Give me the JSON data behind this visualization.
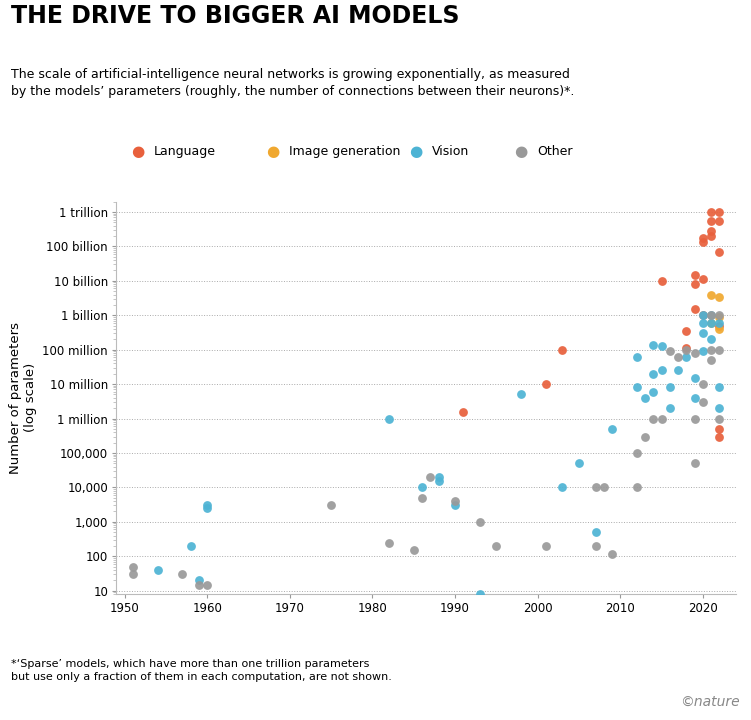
{
  "title": "THE DRIVE TO BIGGER AI MODELS",
  "subtitle": "The scale of artificial-intelligence neural networks is growing exponentially, as measured\nby the models’ parameters (roughly, the number of connections between their neurons)*.",
  "ylabel": "Number of parameters\n(log scale)",
  "footnote": "*‘Sparse’ models, which have more than one trillion parameters\nbut use only a fraction of them in each computation, are not shown.",
  "nature_credit": "©nature",
  "categories": {
    "Language": "#e8603c",
    "Image generation": "#f0a830",
    "Vision": "#4db3d4",
    "Other": "#999999"
  },
  "ytick_labels": [
    "10",
    "100",
    "1,000",
    "10,000",
    "100,000",
    "1 million",
    "10 million",
    "100 million",
    "1 billion",
    "10 billion",
    "100 billion",
    "1 trillion"
  ],
  "ytick_values": [
    10,
    100,
    1000,
    10000,
    100000,
    1000000,
    10000000,
    100000000,
    1000000000,
    10000000000,
    100000000000,
    1000000000000
  ],
  "xlim": [
    1949,
    2024
  ],
  "ylim": [
    8,
    2000000000000
  ],
  "data": {
    "Language": [
      [
        1991,
        1500000
      ],
      [
        2001,
        10000000
      ],
      [
        2003,
        100000000
      ],
      [
        2018,
        110000000
      ],
      [
        2018,
        340000000
      ],
      [
        2019,
        1500000000
      ],
      [
        2019,
        8000000000
      ],
      [
        2019,
        15000000000
      ],
      [
        2020,
        175000000000
      ],
      [
        2020,
        1000000000
      ],
      [
        2020,
        11000000000
      ],
      [
        2020,
        137000000000
      ],
      [
        2021,
        530000000000
      ],
      [
        2021,
        1000000000000
      ],
      [
        2021,
        200000000000
      ],
      [
        2021,
        280000000000
      ],
      [
        2022,
        540000000000
      ],
      [
        2022,
        1000000000000
      ],
      [
        2022,
        70000000000
      ],
      [
        2022,
        500000000
      ],
      [
        2022,
        300000
      ],
      [
        2022,
        500000
      ],
      [
        2015,
        10000000000
      ]
    ],
    "Image generation": [
      [
        2021,
        4000000000
      ],
      [
        2022,
        3500000000
      ],
      [
        2022,
        400000000
      ],
      [
        2022,
        900000000
      ],
      [
        2021,
        600000000
      ]
    ],
    "Vision": [
      [
        1954,
        40
      ],
      [
        1958,
        200
      ],
      [
        1959,
        20
      ],
      [
        1960,
        3000
      ],
      [
        1960,
        2500
      ],
      [
        1982,
        1000000
      ],
      [
        1986,
        10000
      ],
      [
        1988,
        15000
      ],
      [
        1988,
        20000
      ],
      [
        1990,
        3000
      ],
      [
        1993,
        8
      ],
      [
        1998,
        5000000
      ],
      [
        2003,
        10000
      ],
      [
        2005,
        50000
      ],
      [
        2007,
        500
      ],
      [
        2009,
        500000
      ],
      [
        2012,
        60000000
      ],
      [
        2012,
        8000000
      ],
      [
        2013,
        4000000
      ],
      [
        2014,
        6000000
      ],
      [
        2014,
        20000000
      ],
      [
        2014,
        140000000
      ],
      [
        2015,
        25000000
      ],
      [
        2015,
        130000000
      ],
      [
        2016,
        8000000
      ],
      [
        2016,
        2000000
      ],
      [
        2017,
        25000000
      ],
      [
        2018,
        60000000
      ],
      [
        2019,
        4000000
      ],
      [
        2019,
        15000000
      ],
      [
        2020,
        90000000
      ],
      [
        2020,
        300000000
      ],
      [
        2020,
        600000000
      ],
      [
        2020,
        1000000000
      ],
      [
        2021,
        200000000
      ],
      [
        2021,
        600000000
      ],
      [
        2021,
        1000000000
      ],
      [
        2022,
        2000000
      ],
      [
        2022,
        8000000
      ],
      [
        2022,
        600000000
      ]
    ],
    "Other": [
      [
        1951,
        30
      ],
      [
        1951,
        50
      ],
      [
        1957,
        30
      ],
      [
        1959,
        15
      ],
      [
        1960,
        15
      ],
      [
        1975,
        3000
      ],
      [
        1982,
        250
      ],
      [
        1985,
        150
      ],
      [
        1986,
        5000
      ],
      [
        1987,
        20000
      ],
      [
        1990,
        4000
      ],
      [
        1993,
        1000
      ],
      [
        1995,
        200
      ],
      [
        2001,
        200
      ],
      [
        2007,
        10000
      ],
      [
        2007,
        200
      ],
      [
        2008,
        10000
      ],
      [
        2009,
        120
      ],
      [
        2012,
        100000
      ],
      [
        2012,
        10000
      ],
      [
        2013,
        300000
      ],
      [
        2014,
        1000000
      ],
      [
        2015,
        1000000
      ],
      [
        2016,
        90000000
      ],
      [
        2017,
        60000000
      ],
      [
        2018,
        100000000
      ],
      [
        2019,
        80000000
      ],
      [
        2019,
        1000000
      ],
      [
        2019,
        50000
      ],
      [
        2020,
        10000000
      ],
      [
        2020,
        3000000
      ],
      [
        2021,
        1000000000
      ],
      [
        2021,
        100000000
      ],
      [
        2021,
        50000000
      ],
      [
        2022,
        1000000
      ],
      [
        2022,
        1000000000
      ],
      [
        2022,
        100000000
      ]
    ]
  }
}
